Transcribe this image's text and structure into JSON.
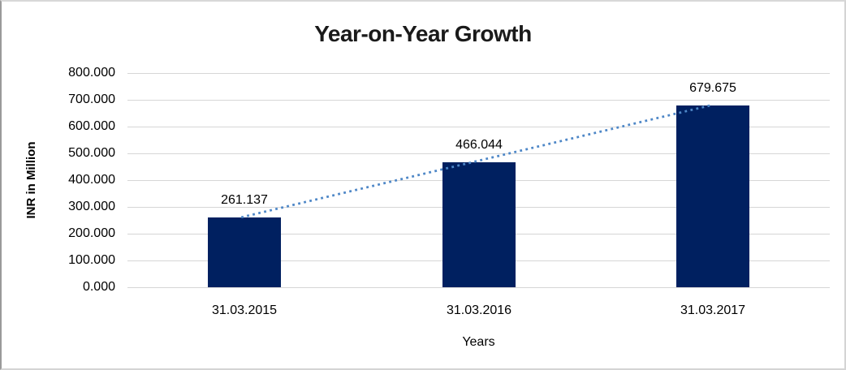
{
  "chart_data": {
    "type": "bar",
    "title": "Year-on-Year Growth",
    "categories": [
      "31.03.2015",
      "31.03.2016",
      "31.03.2017"
    ],
    "values": [
      261.137,
      466.044,
      679.675
    ],
    "value_labels": [
      "261.137",
      "466.044",
      "679.675"
    ],
    "xlabel": "Years",
    "ylabel": "INR in Million",
    "ylim": [
      0,
      800
    ],
    "yticks": [
      {
        "value": 0,
        "label": "0.000"
      },
      {
        "value": 100,
        "label": "100.000"
      },
      {
        "value": 200,
        "label": "200.000"
      },
      {
        "value": 300,
        "label": "300.000"
      },
      {
        "value": 400,
        "label": "400.000"
      },
      {
        "value": 500,
        "label": "500.000"
      },
      {
        "value": 600,
        "label": "600.000"
      },
      {
        "value": 700,
        "label": "700.000"
      },
      {
        "value": 800,
        "label": "800.000"
      }
    ],
    "grid": true,
    "legend": "none",
    "trendline": {
      "type": "linear",
      "style": "dotted"
    },
    "colors": {
      "bar": "#002060",
      "trendline": "#4E87C7",
      "gridline": "#D6D6D6",
      "title_text": "#1A1A1A",
      "label_text": "#000000"
    }
  }
}
